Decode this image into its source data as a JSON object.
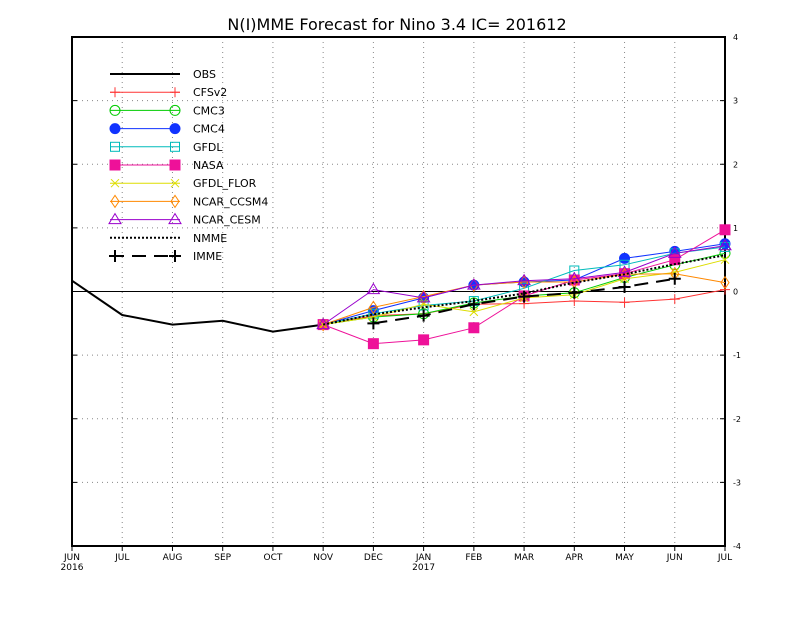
{
  "chart_data": {
    "type": "line",
    "title": "N(I)MME Forecast for Nino 3.4   IC= 201612",
    "x_tick_labels": [
      "JUN",
      "JUL",
      "AUG",
      "SEP",
      "OCT",
      "NOV",
      "DEC",
      "JAN",
      "FEB",
      "MAR",
      "APR",
      "MAY",
      "JUN",
      "JUL"
    ],
    "x_year_labels": [
      {
        "index": 0,
        "label": "2016"
      },
      {
        "index": 7,
        "label": "2017"
      }
    ],
    "ylim": [
      -4,
      4
    ],
    "y_ticks": [
      -4,
      -3,
      -2,
      -1,
      0,
      1,
      2,
      3,
      4
    ],
    "zero_line": true,
    "grid": "dotted",
    "legend_position": "top-left",
    "series": [
      {
        "name": "OBS",
        "color": "#000000",
        "line": "solid",
        "width": 2,
        "marker": "none",
        "x": [
          0,
          1,
          2,
          3,
          4,
          5
        ],
        "y": [
          0.17,
          -0.37,
          -0.52,
          -0.46,
          -0.63,
          -0.52
        ]
      },
      {
        "name": "CFSv2",
        "color": "#ff3333",
        "line": "solid",
        "width": 1,
        "marker": "plus",
        "x": [
          5,
          6,
          7,
          8,
          9,
          10,
          11,
          12,
          13
        ],
        "y": [
          -0.52,
          -0.38,
          -0.35,
          -0.2,
          -0.19,
          -0.15,
          -0.17,
          -0.12,
          0.03
        ]
      },
      {
        "name": "CMC3",
        "color": "#00cc00",
        "line": "solid",
        "width": 1,
        "marker": "circle-open",
        "x": [
          5,
          6,
          7,
          8,
          9,
          10,
          11,
          12,
          13
        ],
        "y": [
          -0.52,
          -0.4,
          -0.35,
          -0.18,
          -0.07,
          -0.02,
          0.22,
          0.42,
          0.6
        ]
      },
      {
        "name": "CMC4",
        "color": "#1133ff",
        "line": "solid",
        "width": 1,
        "marker": "circle-filled",
        "x": [
          5,
          6,
          7,
          8,
          9,
          10,
          11,
          12,
          13
        ],
        "y": [
          -0.52,
          -0.3,
          -0.1,
          0.1,
          0.15,
          0.18,
          0.52,
          0.63,
          0.75
        ]
      },
      {
        "name": "GFDL",
        "color": "#00bbbb",
        "line": "solid",
        "width": 1,
        "marker": "square-open",
        "x": [
          5,
          6,
          7,
          8,
          9,
          10,
          11,
          12,
          13
        ],
        "y": [
          -0.52,
          -0.35,
          -0.22,
          -0.15,
          0.05,
          0.33,
          0.42,
          0.6,
          0.7
        ]
      },
      {
        "name": "NASA",
        "color": "#ee1199",
        "line": "solid",
        "width": 1,
        "marker": "square-filled",
        "x": [
          5,
          6,
          7,
          8,
          9,
          10,
          11,
          12,
          13
        ],
        "y": [
          -0.52,
          -0.82,
          -0.76,
          -0.57,
          -0.07,
          0.18,
          0.28,
          0.5,
          0.97
        ]
      },
      {
        "name": "GFDL_FLOR",
        "color": "#dddd00",
        "line": "solid",
        "width": 1,
        "marker": "x",
        "x": [
          5,
          6,
          7,
          8,
          9,
          10,
          11,
          12,
          13
        ],
        "y": [
          -0.52,
          -0.4,
          -0.2,
          -0.32,
          -0.1,
          -0.05,
          0.2,
          0.3,
          0.5
        ]
      },
      {
        "name": "NCAR_CCSM4",
        "color": "#ff8800",
        "line": "solid",
        "width": 1,
        "marker": "diamond-open",
        "x": [
          5,
          6,
          7,
          8,
          9,
          10,
          11,
          12,
          13
        ],
        "y": [
          -0.52,
          -0.25,
          -0.08,
          0.1,
          0.15,
          0.15,
          0.27,
          0.28,
          0.14
        ]
      },
      {
        "name": "NCAR_CESM",
        "color": "#9900cc",
        "line": "solid",
        "width": 1,
        "marker": "triangle-open",
        "x": [
          5,
          6,
          7,
          8,
          9,
          10,
          11,
          12,
          13
        ],
        "y": [
          -0.52,
          0.03,
          -0.1,
          0.1,
          0.17,
          0.2,
          0.3,
          0.6,
          0.72
        ]
      },
      {
        "name": "NMME",
        "color": "#000000",
        "line": "dotted",
        "width": 2,
        "marker": "none",
        "x": [
          5,
          6,
          7,
          8,
          9,
          10,
          11,
          12,
          13
        ],
        "y": [
          -0.52,
          -0.36,
          -0.25,
          -0.15,
          -0.03,
          0.14,
          0.27,
          0.43,
          0.57
        ]
      },
      {
        "name": "IMME",
        "color": "#000000",
        "line": "dashed",
        "width": 2,
        "marker": "plus-bold",
        "x": [
          6,
          7,
          8,
          9,
          10,
          11,
          12
        ],
        "y": [
          -0.5,
          -0.38,
          -0.2,
          -0.08,
          -0.02,
          0.07,
          0.2
        ]
      }
    ]
  }
}
